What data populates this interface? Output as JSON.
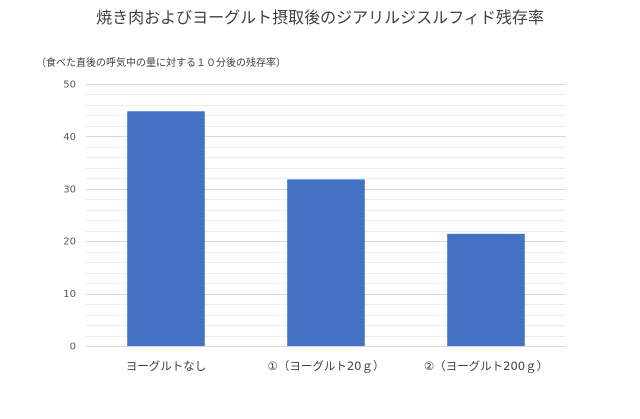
{
  "chart_data": {
    "type": "bar",
    "title": "焼き肉およびヨーグルト摂取後のジアリルジスルフィド残存率",
    "ylabel": "（食べた直後の呼気中の量に対する１０分後の残存率）",
    "xlabel": "",
    "categories": [
      "ヨーグルトなし",
      "①（ヨーグルト20ｇ）",
      "②（ヨーグルト200ｇ）"
    ],
    "values": [
      44.8,
      31.8,
      21.4
    ],
    "ylim": [
      0,
      50
    ],
    "yticks": [
      0,
      10,
      20,
      30,
      40,
      50
    ],
    "grid": true,
    "legend": "none",
    "colors": {
      "bar": "#4472C4",
      "gridline": "#D9D9D9",
      "minor_gridline": "#EDEDED",
      "axis_text": "#595959"
    }
  }
}
